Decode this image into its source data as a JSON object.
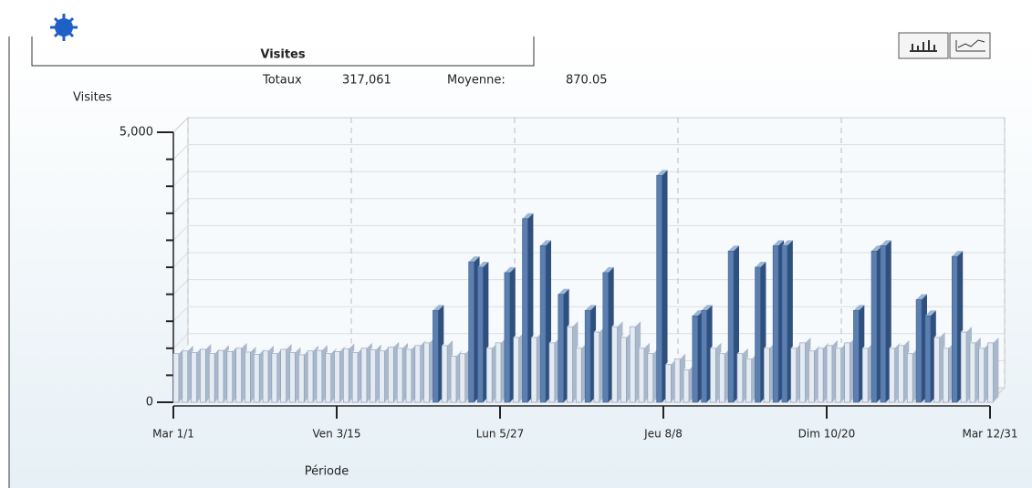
{
  "chart_data": {
    "type": "bar3d",
    "title": "Visites",
    "summary": [
      "Totaux",
      "317,061",
      "Moyenne:",
      "870.05"
    ],
    "ylabel": "Visites",
    "xlabel": "Période",
    "color": "#5b7fb0",
    "x": [
      0,
      4,
      8,
      12,
      16,
      20,
      24,
      28,
      32,
      36,
      40,
      44,
      48,
      52,
      56,
      60,
      64,
      68,
      72,
      76,
      80,
      84,
      88,
      92,
      96,
      100,
      104,
      108,
      112,
      116,
      120,
      124,
      128,
      132,
      136,
      140,
      144,
      148,
      152,
      156,
      160,
      164,
      168,
      172,
      176,
      180,
      184,
      188,
      192,
      196,
      200,
      204,
      208,
      212,
      216,
      220,
      224,
      228,
      232,
      236,
      240,
      244,
      248,
      252,
      256,
      260,
      264,
      268,
      272,
      276,
      280,
      284,
      288,
      292,
      296,
      300,
      304,
      308,
      312,
      316,
      320,
      324,
      328,
      332,
      336,
      340,
      344,
      348,
      352,
      356,
      360,
      364
    ],
    "values": [
      900,
      950,
      920,
      980,
      900,
      960,
      940,
      1000,
      930,
      890,
      950,
      900,
      980,
      920,
      880,
      950,
      960,
      900,
      940,
      990,
      920,
      1000,
      970,
      950,
      1020,
      1000,
      980,
      1050,
      1100,
      1700,
      1050,
      850,
      900,
      2600,
      2500,
      1000,
      1100,
      2400,
      1200,
      3400,
      1200,
      2900,
      1100,
      2000,
      1400,
      1000,
      1700,
      1300,
      2400,
      1400,
      1200,
      1400,
      1000,
      900,
      4200,
      700,
      800,
      600,
      1600,
      1700,
      1000,
      900,
      2800,
      900,
      800,
      2500,
      1000,
      2900,
      2900,
      1000,
      1100,
      950,
      1000,
      1050,
      1000,
      1100,
      1700,
      1000,
      2800,
      2900,
      1000,
      1050,
      900,
      1900,
      1600,
      1200,
      1000,
      2700,
      1300,
      1100,
      1000,
      1100
    ],
    "xlim": [
      0,
      365
    ],
    "xticks": [
      {
        "value": 0,
        "label": "Mar 1/1"
      },
      {
        "value": 73,
        "label": "Ven 3/15"
      },
      {
        "value": 146,
        "label": "Lun 5/27"
      },
      {
        "value": 219,
        "label": "Jeu 8/8"
      },
      {
        "value": 292,
        "label": "Dim 10/20"
      },
      {
        "value": 365,
        "label": "Mar 12/31"
      }
    ],
    "ylim": [
      0,
      5000
    ],
    "yticks": [
      0,
      {
        "value": 5000,
        "label": "5,000"
      }
    ],
    "minor_yticks": [
      500,
      1000,
      1500,
      2000,
      2500,
      3000,
      3500,
      4000,
      4500
    ],
    "grid": true
  }
}
